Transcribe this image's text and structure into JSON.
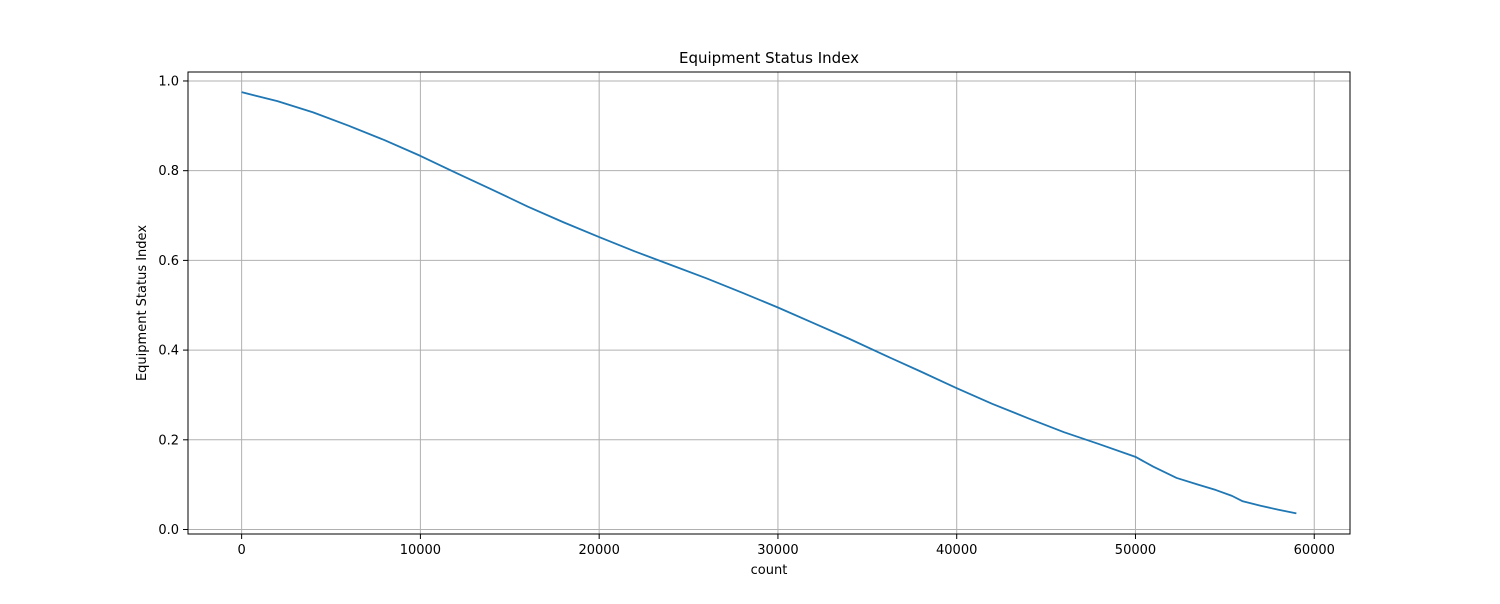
{
  "chart_data": {
    "type": "line",
    "title": "Equipment Status Index",
    "xlabel": "count",
    "ylabel": "Equipment Status Index",
    "xlim": [
      -3000,
      62000
    ],
    "ylim": [
      -0.01,
      1.02
    ],
    "x_ticks": [
      0,
      10000,
      20000,
      30000,
      40000,
      50000,
      60000
    ],
    "x_tick_labels": [
      "0",
      "10000",
      "20000",
      "30000",
      "40000",
      "50000",
      "60000"
    ],
    "y_ticks": [
      0.0,
      0.2,
      0.4,
      0.6,
      0.8,
      1.0
    ],
    "y_tick_labels": [
      "0.0",
      "0.2",
      "0.4",
      "0.6",
      "0.8",
      "1.0"
    ],
    "grid": true,
    "colors": {
      "line": "#1f77b4",
      "grid": "#b0b0b0",
      "axes": "#000000"
    },
    "series": [
      {
        "x": [
          0,
          2000,
          4000,
          6000,
          8000,
          10000,
          12000,
          14000,
          16000,
          18000,
          20000,
          22000,
          24000,
          26000,
          28000,
          30000,
          32000,
          34000,
          36000,
          38000,
          40000,
          42000,
          44000,
          46000,
          48000,
          50000,
          51000,
          52300,
          53500,
          54500,
          55400,
          56000,
          57000,
          58000,
          59000
        ],
        "y": [
          0.975,
          0.955,
          0.93,
          0.9,
          0.868,
          0.833,
          0.795,
          0.758,
          0.72,
          0.685,
          0.652,
          0.62,
          0.59,
          0.56,
          0.528,
          0.495,
          0.46,
          0.425,
          0.388,
          0.352,
          0.315,
          0.28,
          0.248,
          0.217,
          0.19,
          0.162,
          0.14,
          0.115,
          0.1,
          0.088,
          0.075,
          0.063,
          0.053,
          0.044,
          0.036
        ]
      }
    ]
  }
}
